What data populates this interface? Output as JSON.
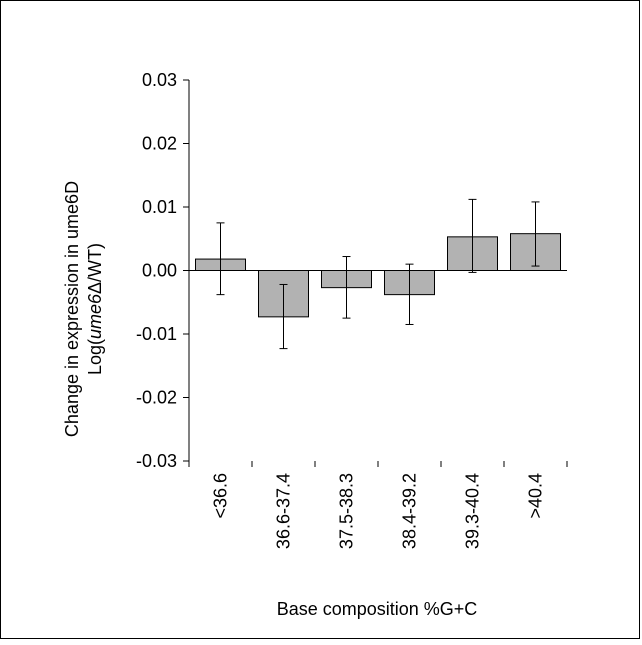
{
  "chart_data": {
    "type": "bar",
    "categories": [
      "<36.6",
      "36.6-37.4",
      "37.5-38.3",
      "38.4-39.2",
      "39.3-40.4",
      ">40.4"
    ],
    "values": [
      0.0018,
      -0.0073,
      -0.0027,
      -0.0038,
      0.0053,
      0.0058
    ],
    "error_high": [
      0.0075,
      -0.0022,
      0.0022,
      0.001,
      0.0112,
      0.0108
    ],
    "error_low": [
      -0.0038,
      -0.0123,
      -0.0075,
      -0.0085,
      -0.0003,
      0.0007
    ],
    "ylim": [
      -0.03,
      0.03
    ],
    "yticks": [
      0.03,
      0.02,
      0.01,
      0.0,
      -0.01,
      -0.02,
      -0.03
    ],
    "ytick_labels": [
      "0.03",
      "0.02",
      "0.01",
      "0.00",
      "-0.01",
      "-0.02",
      "-0.03"
    ],
    "xlabel": "Base composition %G+C",
    "ylabel_line1": "Change in expression in ume6D",
    "ylabel_line2": {
      "prefix": "Log(",
      "italic": "ume6",
      "delta": "Δ",
      "suffix": "/WT)"
    },
    "bar_color": "#b2b2b2",
    "grid": false,
    "legend": "none"
  }
}
